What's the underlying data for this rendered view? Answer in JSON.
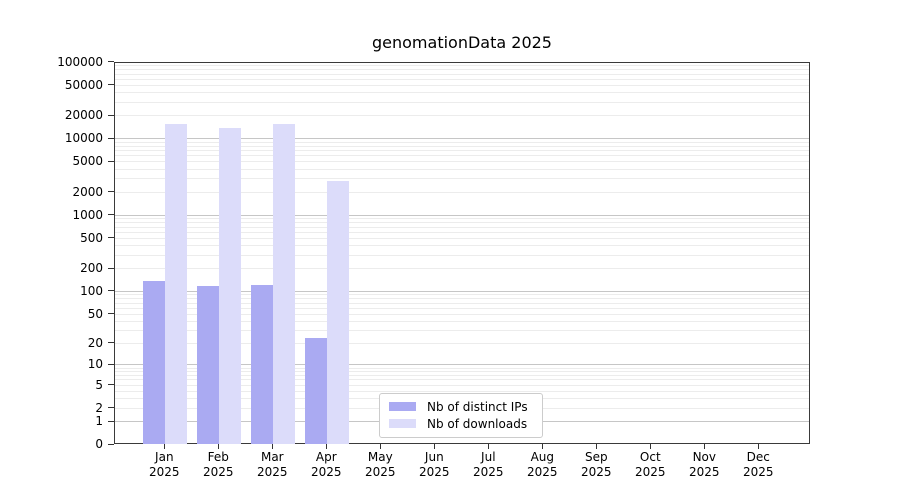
{
  "title": "genomationData 2025",
  "chart_data": {
    "type": "bar",
    "title": "genomationData 2025",
    "categories": [
      "Jan",
      "Feb",
      "Mar",
      "Apr",
      "May",
      "Jun",
      "Jul",
      "Aug",
      "Sep",
      "Oct",
      "Nov",
      "Dec"
    ],
    "category_year": "2025",
    "series": [
      {
        "name": "Nb of distinct IPs",
        "color": "#aaaaf2",
        "values": [
          140,
          120,
          125,
          24,
          null,
          null,
          null,
          null,
          null,
          null,
          null,
          null
        ]
      },
      {
        "name": "Nb of downloads",
        "color": "#dcdcfa",
        "values": [
          16000,
          14200,
          15700,
          2850,
          null,
          null,
          null,
          null,
          null,
          null,
          null,
          null
        ]
      }
    ],
    "y_ticks": [
      0,
      1,
      2,
      5,
      10,
      20,
      50,
      100,
      200,
      500,
      1000,
      2000,
      5000,
      10000,
      20000,
      50000,
      100000
    ],
    "y_scale": "log10(1+value)",
    "ylim": [
      0,
      100000
    ],
    "xlabel": "",
    "ylabel": "",
    "grid": true,
    "legend_position": "bottom-center-inside"
  },
  "colors": {
    "spine": "#3a3a3a",
    "grid_major": "#c6c6c6",
    "grid_minor": "#ececec",
    "background": "#ffffff",
    "text": "#000000"
  }
}
